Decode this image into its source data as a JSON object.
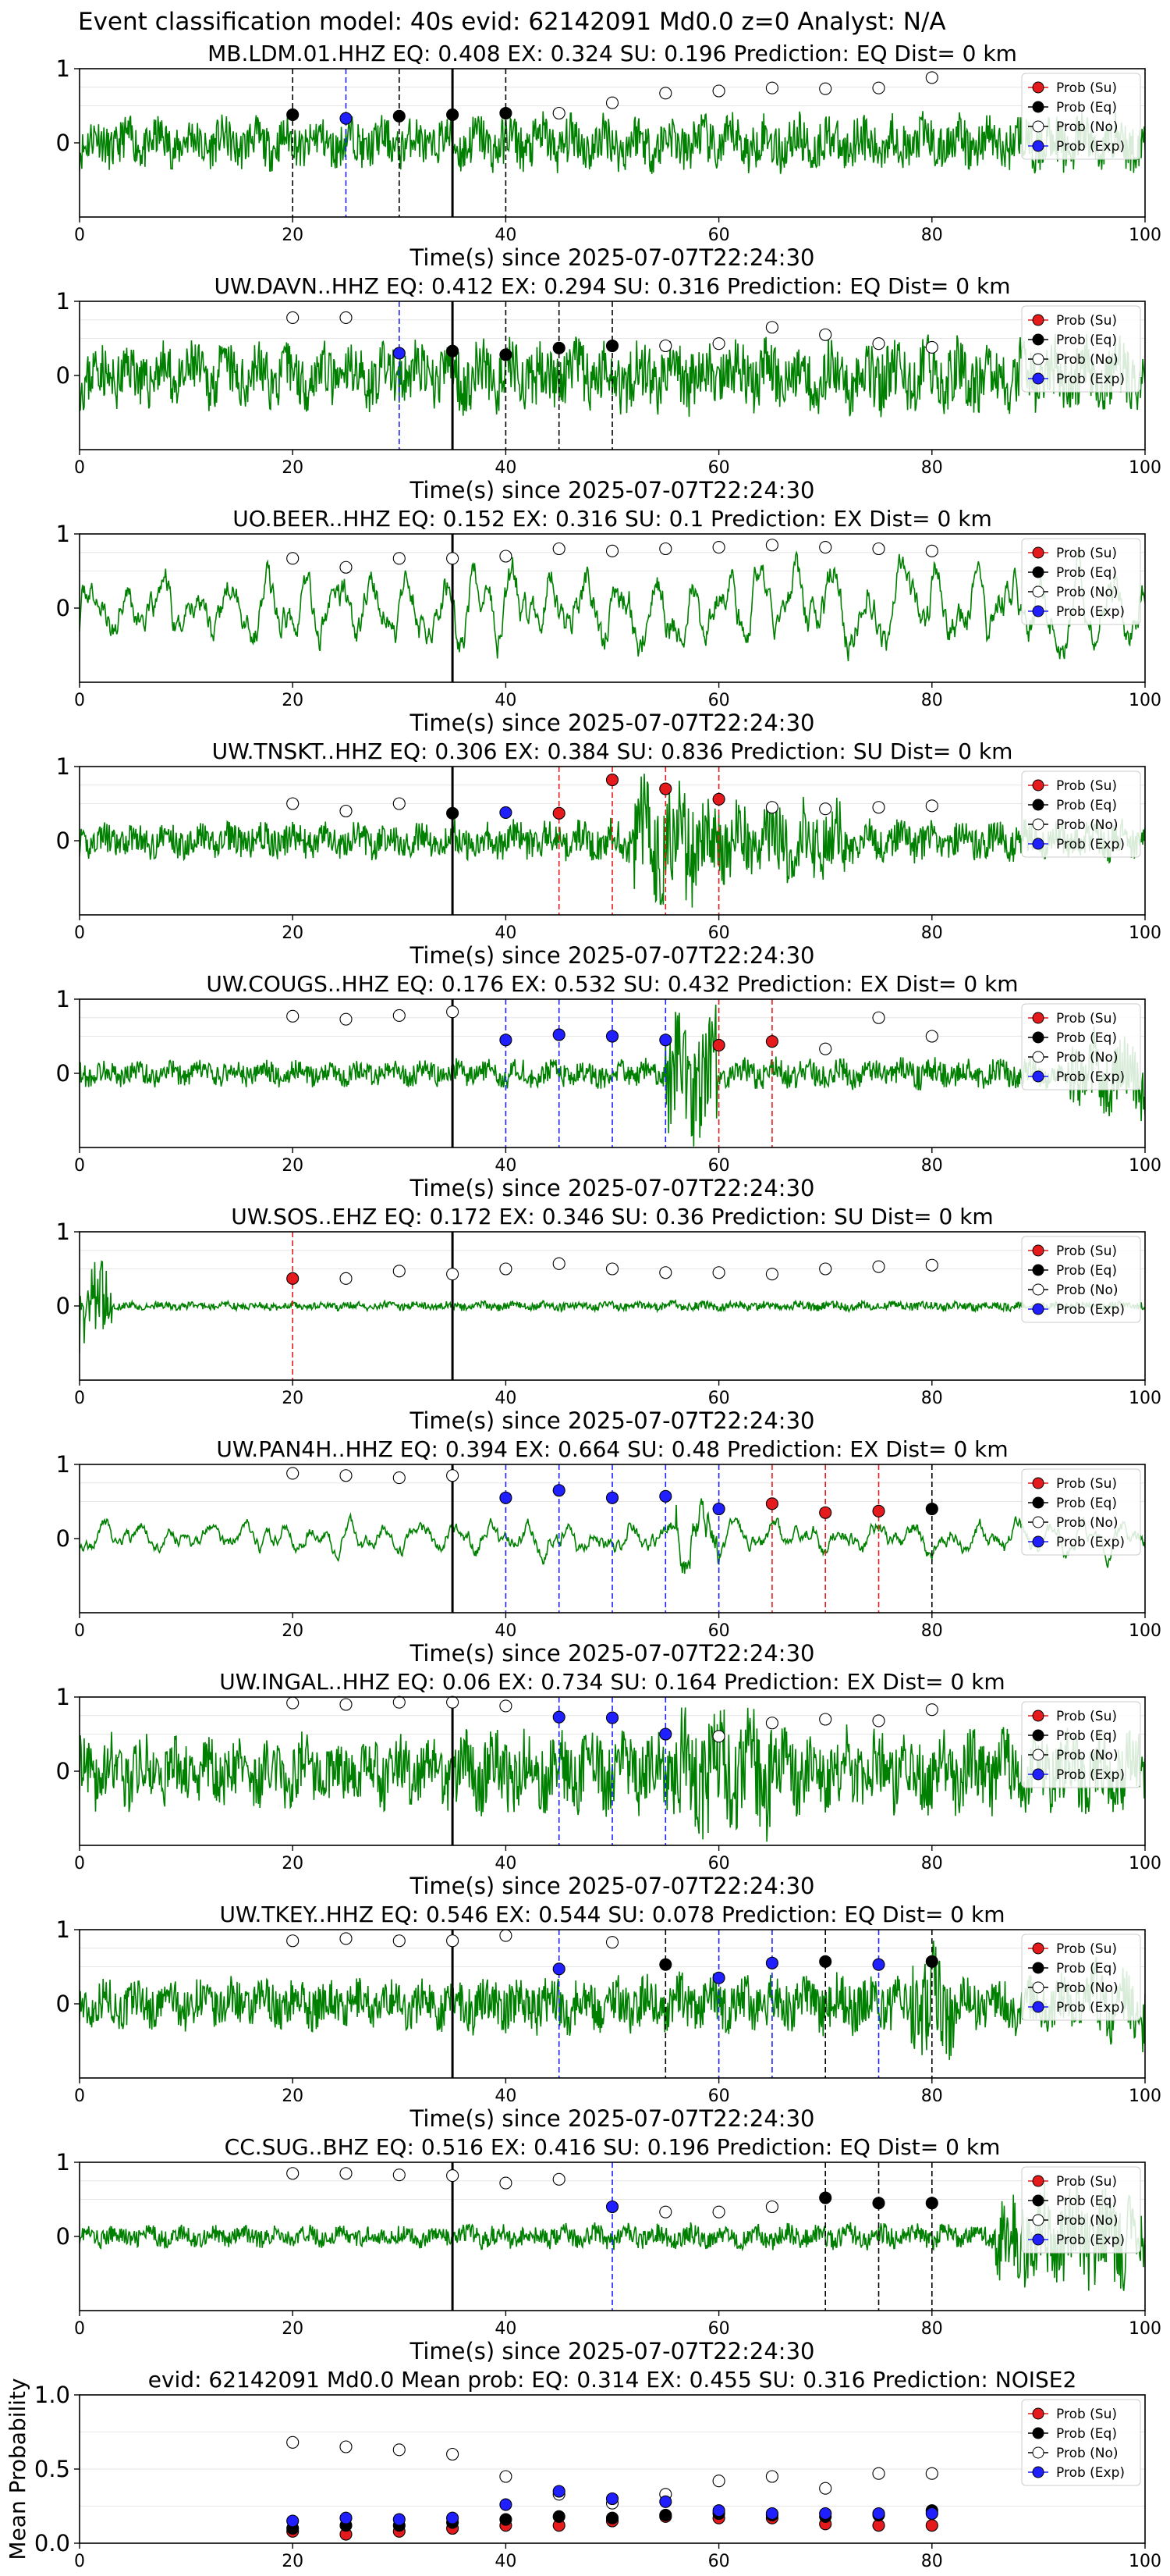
{
  "figure_title": "Event classification model: 40s evid: 62142091 Md0.0 z=0 Analyst: N/A",
  "legend": [
    {
      "label": "Prob (Su)",
      "color": "#e41a1c",
      "fill": "#e41a1c"
    },
    {
      "label": "Prob (Eq)",
      "color": "#000000",
      "fill": "#000000"
    },
    {
      "label": "Prob (No)",
      "color": "#000000",
      "fill": "#ffffff"
    },
    {
      "label": "Prob (Exp)",
      "color": "#1f1fff",
      "fill": "#1f1fff"
    }
  ],
  "colors": {
    "waveform": "#008000",
    "su": "#e41a1c",
    "eq": "#000000",
    "no": "#ffffff",
    "exp": "#1f1fff",
    "grid": "#e6e6e6"
  },
  "chart_data": [
    {
      "type": "line",
      "title": "MB.LDM.01.HHZ    EQ: 0.408  EX: 0.324  SU: 0.196   Prediction: EQ    Dist= 0 km",
      "xlabel": "Time(s) since 2025-07-07T22:24:30",
      "xlim": [
        0,
        100
      ],
      "ylim": [
        -1,
        1
      ],
      "xticks": [
        0,
        20,
        40,
        60,
        80,
        100
      ],
      "yticks": [
        0,
        1
      ],
      "onset": 35,
      "noise_level": 0.35,
      "seed": 11,
      "points": {
        "x": [
          20,
          25,
          30,
          35,
          40,
          45,
          50,
          55,
          60,
          65,
          70,
          75,
          80
        ],
        "y": [
          0.38,
          0.33,
          0.36,
          0.38,
          0.4,
          0.4,
          0.54,
          0.67,
          0.7,
          0.74,
          0.73,
          0.74,
          0.88
        ],
        "cls": [
          "eq",
          "exp",
          "eq",
          "eq",
          "eq",
          "no",
          "no",
          "no",
          "no",
          "no",
          "no",
          "no",
          "no"
        ]
      },
      "vlines": [
        {
          "x": 20,
          "cls": "eq"
        },
        {
          "x": 25,
          "cls": "exp"
        },
        {
          "x": 30,
          "cls": "eq"
        },
        {
          "x": 40,
          "cls": "eq"
        }
      ]
    },
    {
      "type": "line",
      "title": "UW.DAVN..HHZ   EQ: 0.412  EX: 0.294  SU: 0.316   Prediction: EQ    Dist= 0 km",
      "xlabel": "Time(s) since 2025-07-07T22:24:30",
      "xlim": [
        0,
        100
      ],
      "ylim": [
        -1,
        1
      ],
      "xticks": [
        0,
        20,
        40,
        60,
        80,
        100
      ],
      "yticks": [
        0,
        1
      ],
      "onset": 35,
      "noise_level": 0.45,
      "seed": 23,
      "points": {
        "x": [
          20,
          25,
          30,
          35,
          40,
          45,
          50,
          55,
          60,
          65,
          70,
          75,
          80
        ],
        "y": [
          0.78,
          0.78,
          0.3,
          0.33,
          0.28,
          0.37,
          0.4,
          0.4,
          0.43,
          0.65,
          0.55,
          0.43,
          0.38
        ],
        "cls": [
          "no",
          "no",
          "exp",
          "eq",
          "eq",
          "eq",
          "eq",
          "no",
          "no",
          "no",
          "no",
          "no",
          "no"
        ]
      },
      "vlines": [
        {
          "x": 30,
          "cls": "exp"
        },
        {
          "x": 40,
          "cls": "eq"
        },
        {
          "x": 45,
          "cls": "eq"
        },
        {
          "x": 50,
          "cls": "eq"
        }
      ]
    },
    {
      "type": "line",
      "title": "UO.BEER..HHZ   EQ: 0.152  EX: 0.316  SU: 0.1   Prediction: EX    Dist= 0 km",
      "xlabel": "Time(s) since 2025-07-07T22:24:30",
      "xlim": [
        0,
        100
      ],
      "ylim": [
        -1,
        1
      ],
      "xticks": [
        0,
        20,
        40,
        60,
        80,
        100
      ],
      "yticks": [
        0,
        1
      ],
      "onset": 35,
      "noise_level": 0.5,
      "seed": 37,
      "smooth": true,
      "points": {
        "x": [
          20,
          25,
          30,
          35,
          40,
          45,
          50,
          55,
          60,
          65,
          70,
          75,
          80
        ],
        "y": [
          0.67,
          0.55,
          0.67,
          0.67,
          0.7,
          0.8,
          0.77,
          0.8,
          0.82,
          0.85,
          0.82,
          0.8,
          0.77
        ],
        "cls": [
          "no",
          "no",
          "no",
          "no",
          "no",
          "no",
          "no",
          "no",
          "no",
          "no",
          "no",
          "no",
          "no"
        ]
      },
      "vlines": []
    },
    {
      "type": "line",
      "title": "UW.TNSKT..HHZ   EQ: 0.306  EX: 0.384  SU: 0.836   Prediction: SU    Dist= 0 km",
      "xlabel": "Time(s) since 2025-07-07T22:24:30",
      "xlim": [
        0,
        100
      ],
      "ylim": [
        -1,
        1
      ],
      "xticks": [
        0,
        20,
        40,
        60,
        80,
        100
      ],
      "yticks": [
        0,
        1
      ],
      "onset": 35,
      "noise_level": 0.25,
      "seed": 41,
      "burst": [
        [
          52,
          58,
          0.9
        ],
        [
          58,
          72,
          0.55
        ]
      ],
      "points": {
        "x": [
          20,
          25,
          30,
          35,
          40,
          45,
          50,
          55,
          60,
          65,
          70,
          75,
          80
        ],
        "y": [
          0.5,
          0.4,
          0.5,
          0.37,
          0.38,
          0.37,
          0.82,
          0.7,
          0.56,
          0.45,
          0.43,
          0.45,
          0.47
        ],
        "cls": [
          "no",
          "no",
          "no",
          "eq",
          "exp",
          "su",
          "su",
          "su",
          "su",
          "no",
          "no",
          "no",
          "no"
        ]
      },
      "vlines": [
        {
          "x": 45,
          "cls": "su"
        },
        {
          "x": 50,
          "cls": "su"
        },
        {
          "x": 55,
          "cls": "su"
        },
        {
          "x": 60,
          "cls": "su"
        }
      ]
    },
    {
      "type": "line",
      "title": "UW.COUGS..HHZ   EQ: 0.176  EX: 0.532  SU: 0.432   Prediction: EX    Dist= 0 km",
      "xlabel": "Time(s) since 2025-07-07T22:24:30",
      "xlim": [
        0,
        100
      ],
      "ylim": [
        -1,
        1
      ],
      "xticks": [
        0,
        20,
        40,
        60,
        80,
        100
      ],
      "yticks": [
        0,
        1
      ],
      "onset": 35,
      "noise_level": 0.18,
      "seed": 53,
      "burst": [
        [
          55,
          60,
          0.95
        ],
        [
          93,
          100,
          0.6
        ]
      ],
      "points": {
        "x": [
          20,
          25,
          30,
          35,
          40,
          45,
          50,
          55,
          60,
          65,
          70,
          75,
          80
        ],
        "y": [
          0.77,
          0.73,
          0.78,
          0.83,
          0.45,
          0.52,
          0.5,
          0.45,
          0.38,
          0.43,
          0.33,
          0.75,
          0.5
        ],
        "cls": [
          "no",
          "no",
          "no",
          "no",
          "exp",
          "exp",
          "exp",
          "exp",
          "su",
          "su",
          "no",
          "no",
          "no"
        ]
      },
      "vlines": [
        {
          "x": 40,
          "cls": "exp"
        },
        {
          "x": 45,
          "cls": "exp"
        },
        {
          "x": 50,
          "cls": "exp"
        },
        {
          "x": 55,
          "cls": "exp"
        },
        {
          "x": 60,
          "cls": "su"
        },
        {
          "x": 65,
          "cls": "su"
        }
      ]
    },
    {
      "type": "line",
      "title": "UW.SOS..EHZ   EQ: 0.172  EX: 0.346  SU: 0.36   Prediction: SU    Dist= 0 km",
      "xlabel": "Time(s) since 2025-07-07T22:24:30",
      "xlim": [
        0,
        100
      ],
      "ylim": [
        -1,
        1
      ],
      "xticks": [
        0,
        20,
        40,
        60,
        80,
        100
      ],
      "yticks": [
        0,
        1
      ],
      "onset": 35,
      "noise_level": 0.06,
      "seed": 67,
      "burst": [
        [
          0,
          3,
          0.6
        ]
      ],
      "points": {
        "x": [
          20,
          25,
          30,
          35,
          40,
          45,
          50,
          55,
          60,
          65,
          70,
          75,
          80
        ],
        "y": [
          0.37,
          0.37,
          0.47,
          0.43,
          0.5,
          0.57,
          0.5,
          0.45,
          0.45,
          0.43,
          0.5,
          0.53,
          0.55
        ],
        "cls": [
          "su",
          "no",
          "no",
          "no",
          "no",
          "no",
          "no",
          "no",
          "no",
          "no",
          "no",
          "no",
          "no"
        ]
      },
      "vlines": [
        {
          "x": 20,
          "cls": "su"
        }
      ]
    },
    {
      "type": "line",
      "title": "UW.PAN4H..HHZ   EQ: 0.394  EX: 0.664  SU: 0.48   Prediction: EX    Dist= 0 km",
      "xlabel": "Time(s) since 2025-07-07T22:24:30",
      "xlim": [
        0,
        100
      ],
      "ylim": [
        -1,
        1
      ],
      "xticks": [
        0,
        20,
        40,
        60,
        80,
        100
      ],
      "yticks": [
        0,
        1
      ],
      "onset": 35,
      "noise_level": 0.22,
      "seed": 79,
      "smooth": true,
      "burst": [
        [
          56,
          60,
          0.7
        ]
      ],
      "points": {
        "x": [
          20,
          25,
          30,
          35,
          40,
          45,
          50,
          55,
          60,
          65,
          70,
          75,
          80
        ],
        "y": [
          0.88,
          0.85,
          0.82,
          0.85,
          0.55,
          0.65,
          0.55,
          0.57,
          0.4,
          0.47,
          0.35,
          0.37,
          0.4
        ],
        "cls": [
          "no",
          "no",
          "no",
          "no",
          "exp",
          "exp",
          "exp",
          "exp",
          "exp",
          "su",
          "su",
          "su",
          "eq"
        ]
      },
      "vlines": [
        {
          "x": 40,
          "cls": "exp"
        },
        {
          "x": 45,
          "cls": "exp"
        },
        {
          "x": 50,
          "cls": "exp"
        },
        {
          "x": 55,
          "cls": "exp"
        },
        {
          "x": 60,
          "cls": "exp"
        },
        {
          "x": 65,
          "cls": "su"
        },
        {
          "x": 70,
          "cls": "su"
        },
        {
          "x": 75,
          "cls": "su"
        },
        {
          "x": 80,
          "cls": "eq"
        }
      ]
    },
    {
      "type": "line",
      "title": "UW.INGAL..HHZ   EQ: 0.06  EX: 0.734  SU: 0.164   Prediction: EX    Dist= 0 km",
      "xlabel": "Time(s) since 2025-07-07T22:24:30",
      "xlim": [
        0,
        100
      ],
      "ylim": [
        -1,
        1
      ],
      "xticks": [
        0,
        20,
        40,
        60,
        80,
        100
      ],
      "yticks": [
        0,
        1
      ],
      "onset": 35,
      "noise_level": 0.5,
      "seed": 83,
      "burst": [
        [
          55,
          65,
          0.9
        ]
      ],
      "points": {
        "x": [
          20,
          25,
          30,
          35,
          40,
          45,
          50,
          55,
          60,
          65,
          70,
          75,
          80
        ],
        "y": [
          0.92,
          0.9,
          0.93,
          0.93,
          0.88,
          0.73,
          0.72,
          0.5,
          0.47,
          0.65,
          0.7,
          0.68,
          0.83
        ],
        "cls": [
          "no",
          "no",
          "no",
          "no",
          "no",
          "exp",
          "exp",
          "exp",
          "no",
          "no",
          "no",
          "no",
          "no"
        ]
      },
      "vlines": [
        {
          "x": 45,
          "cls": "exp"
        },
        {
          "x": 50,
          "cls": "exp"
        },
        {
          "x": 55,
          "cls": "exp"
        }
      ]
    },
    {
      "type": "line",
      "title": "UW.TKEY..HHZ   EQ: 0.546  EX: 0.544  SU: 0.078   Prediction: EQ    Dist= 0 km",
      "xlabel": "Time(s) since 2025-07-07T22:24:30",
      "xlim": [
        0,
        100
      ],
      "ylim": [
        -1,
        1
      ],
      "xticks": [
        0,
        20,
        40,
        60,
        80,
        100
      ],
      "yticks": [
        0,
        1
      ],
      "onset": 35,
      "noise_level": 0.35,
      "seed": 97,
      "burst": [
        [
          78,
          82,
          0.8
        ],
        [
          95,
          100,
          0.6
        ]
      ],
      "points": {
        "x": [
          20,
          25,
          30,
          35,
          40,
          45,
          50,
          55,
          60,
          65,
          70,
          75,
          80
        ],
        "y": [
          0.85,
          0.88,
          0.85,
          0.85,
          0.92,
          0.47,
          0.83,
          0.53,
          0.35,
          0.55,
          0.57,
          0.53,
          0.57
        ],
        "cls": [
          "no",
          "no",
          "no",
          "no",
          "no",
          "exp",
          "no",
          "eq",
          "exp",
          "exp",
          "eq",
          "exp",
          "eq"
        ]
      },
      "vlines": [
        {
          "x": 45,
          "cls": "exp"
        },
        {
          "x": 55,
          "cls": "eq"
        },
        {
          "x": 60,
          "cls": "exp"
        },
        {
          "x": 65,
          "cls": "exp"
        },
        {
          "x": 70,
          "cls": "eq"
        },
        {
          "x": 75,
          "cls": "exp"
        },
        {
          "x": 80,
          "cls": "eq"
        }
      ]
    },
    {
      "type": "line",
      "title": "CC.SUG..BHZ   EQ: 0.516  EX: 0.416  SU: 0.196   Prediction: EQ    Dist= 0 km",
      "xlabel": "Time(s) since 2025-07-07T22:24:30",
      "xlim": [
        0,
        100
      ],
      "ylim": [
        -1,
        1
      ],
      "xticks": [
        0,
        20,
        40,
        60,
        80,
        100
      ],
      "yticks": [
        0,
        1
      ],
      "onset": 35,
      "noise_level": 0.15,
      "seed": 101,
      "burst": [
        [
          86,
          100,
          0.7
        ]
      ],
      "points": {
        "x": [
          20,
          25,
          30,
          35,
          40,
          45,
          50,
          55,
          60,
          65,
          70,
          75,
          80
        ],
        "y": [
          0.85,
          0.85,
          0.83,
          0.82,
          0.72,
          0.77,
          0.4,
          0.33,
          0.33,
          0.4,
          0.52,
          0.45,
          0.45
        ],
        "cls": [
          "no",
          "no",
          "no",
          "no",
          "no",
          "no",
          "exp",
          "no",
          "no",
          "no",
          "eq",
          "eq",
          "eq"
        ]
      },
      "vlines": [
        {
          "x": 50,
          "cls": "exp"
        },
        {
          "x": 70,
          "cls": "eq"
        },
        {
          "x": 75,
          "cls": "eq"
        },
        {
          "x": 80,
          "cls": "eq"
        }
      ]
    },
    {
      "type": "scatter",
      "title": "evid: 62142091  Md0.0   Mean prob:   EQ: 0.314  EX: 0.455  SU: 0.316   Prediction: NOISE2",
      "ylabel": "Mean Probability",
      "xlim": [
        0,
        100
      ],
      "ylim": [
        0,
        1
      ],
      "xticks": [
        0,
        20,
        40,
        60,
        80,
        100
      ],
      "yticks": [
        0.0,
        0.5,
        1.0
      ],
      "x": [
        20,
        25,
        30,
        35,
        40,
        45,
        50,
        55,
        60,
        65,
        70,
        75,
        80
      ],
      "series": [
        {
          "name": "Prob (Su)",
          "cls": "su",
          "values": [
            0.08,
            0.06,
            0.08,
            0.1,
            0.12,
            0.12,
            0.15,
            0.18,
            0.17,
            0.17,
            0.13,
            0.12,
            0.12
          ]
        },
        {
          "name": "Prob (Eq)",
          "cls": "eq",
          "values": [
            0.1,
            0.12,
            0.12,
            0.14,
            0.16,
            0.18,
            0.17,
            0.19,
            0.2,
            0.19,
            0.18,
            0.19,
            0.22
          ]
        },
        {
          "name": "Prob (No)",
          "cls": "no",
          "values": [
            0.68,
            0.65,
            0.63,
            0.6,
            0.45,
            0.33,
            0.27,
            0.33,
            0.42,
            0.45,
            0.37,
            0.47,
            0.47
          ]
        },
        {
          "name": "Prob (Exp)",
          "cls": "exp",
          "values": [
            0.15,
            0.17,
            0.16,
            0.17,
            0.26,
            0.35,
            0.3,
            0.28,
            0.22,
            0.2,
            0.2,
            0.2,
            0.2
          ]
        }
      ]
    }
  ]
}
